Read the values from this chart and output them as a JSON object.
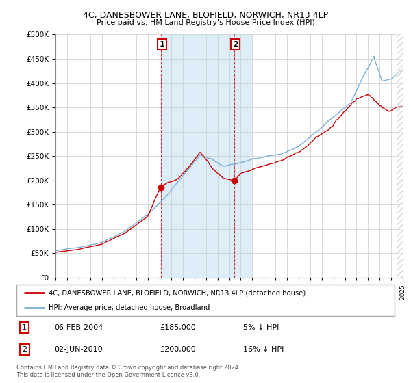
{
  "title": "4C, DANESBOWER LANE, BLOFIELD, NORWICH, NR13 4LP",
  "subtitle": "Price paid vs. HM Land Registry's House Price Index (HPI)",
  "legend_line1": "4C, DANESBOWER LANE, BLOFIELD, NORWICH, NR13 4LP (detached house)",
  "legend_line2": "HPI: Average price, detached house, Broadland",
  "annotation1_date": "06-FEB-2004",
  "annotation1_price": "£185,000",
  "annotation1_hpi": "5% ↓ HPI",
  "annotation2_date": "02-JUN-2010",
  "annotation2_price": "£200,000",
  "annotation2_hpi": "16% ↓ HPI",
  "footnote": "Contains HM Land Registry data © Crown copyright and database right 2024.\nThis data is licensed under the Open Government Licence v3.0.",
  "property_color": "#cc0000",
  "hpi_color": "#7bafd4",
  "highlight_color": "#ddeef8",
  "sale1_x": 2004.1,
  "sale1_y": 185000,
  "sale2_x": 2010.45,
  "sale2_y": 200000,
  "ylim": [
    0,
    500000
  ],
  "yticks": [
    0,
    50000,
    100000,
    150000,
    200000,
    250000,
    300000,
    350000,
    400000,
    450000,
    500000
  ],
  "xmin": 1995,
  "xmax": 2025
}
